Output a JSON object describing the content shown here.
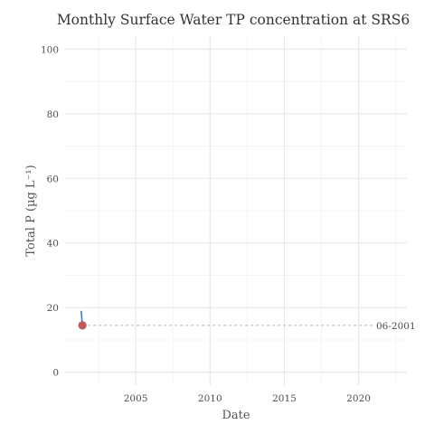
{
  "chart_data": {
    "type": "line",
    "title": "Monthly Surface Water TP concentration at SRS6",
    "xlabel": "Date",
    "ylabel": "Total P (µg L⁻¹)",
    "xlim": [
      "2000-04-01",
      "2023-04-01"
    ],
    "ylim": [
      -4,
      104
    ],
    "x_ticks": [
      {
        "date": "2005-01-01",
        "label": "2005"
      },
      {
        "date": "2010-01-01",
        "label": "2010"
      },
      {
        "date": "2015-01-01",
        "label": "2015"
      },
      {
        "date": "2020-01-01",
        "label": "2020"
      }
    ],
    "y_ticks": [
      0,
      20,
      40,
      60,
      80,
      100
    ],
    "grid": true,
    "series": [
      {
        "color": "#2e7fd6",
        "points": [
          {
            "x": "2001-05-01",
            "y": 19
          },
          {
            "x": "2001-06-01",
            "y": 14.5
          }
        ]
      }
    ],
    "highlight_point": {
      "x": "2001-06-01",
      "y": 14.5,
      "color": "#c0575a"
    },
    "reference_line": {
      "y": 14.5,
      "label": "06-2001"
    }
  }
}
